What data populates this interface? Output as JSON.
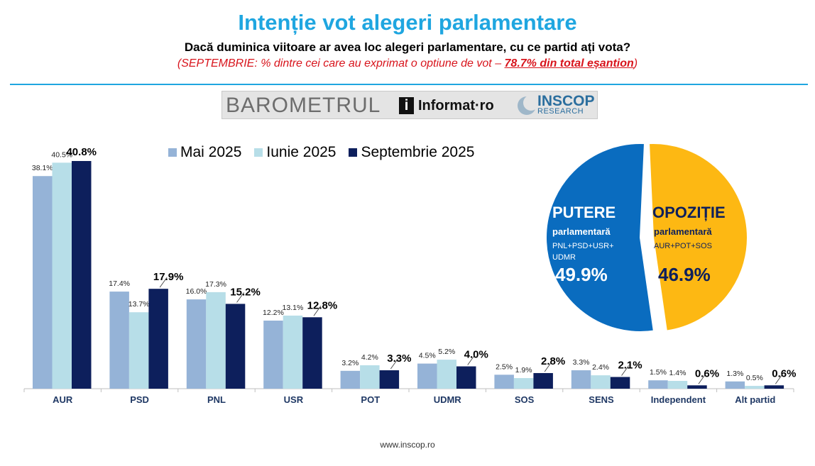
{
  "header": {
    "title": "Intenție vot alegeri parlamentare",
    "question": "Dacă duminica viitoare ar avea loc alegeri parlamentare, cu ce partid ați vota?",
    "note_pre": "(SEPTEMBRIE: % dintre cei care au exprimat o optiune de vot – ",
    "note_highlight": "78.7% din total eșantion",
    "note_post": ")"
  },
  "logo": {
    "barometer": "BAROMETRUL",
    "informat": "Informat·ro",
    "inscop": "INSCOP",
    "research": "RESEARCH"
  },
  "footer": {
    "url": "www.inscop.ro"
  },
  "colors": {
    "accent": "#1fa6e0",
    "note": "#d8141c",
    "putere": "#0a6cbf",
    "opozitie": "#fdb813"
  },
  "chart_data": [
    {
      "type": "bar",
      "categories": [
        "AUR",
        "PSD",
        "PNL",
        "USR",
        "POT",
        "UDMR",
        "SOS",
        "SENS",
        "Independent",
        "Alt partid"
      ],
      "series": [
        {
          "name": "Mai 2025",
          "color": "#95b3d7",
          "labels": [
            "38.1%",
            "17.4%",
            "16.0%",
            "12.2%",
            "3.2%",
            "4.5%",
            "2.5%",
            "3.3%",
            "1.5%",
            "1.3%"
          ],
          "values": [
            38.1,
            17.4,
            16.0,
            12.2,
            3.2,
            4.5,
            2.5,
            3.3,
            1.5,
            1.3
          ]
        },
        {
          "name": "Iunie 2025",
          "color": "#b7dee8",
          "labels": [
            "40.5%",
            "13.7%",
            "17.3%",
            "13.1%",
            "4.2%",
            "5.2%",
            "1.9%",
            "2.4%",
            "1.4%",
            "0.5%"
          ],
          "values": [
            40.5,
            13.7,
            17.3,
            13.1,
            4.2,
            5.2,
            1.9,
            2.4,
            1.4,
            0.5
          ]
        },
        {
          "name": "Septembrie 2025",
          "color": "#0d1f5c",
          "labels": [
            "40.8%",
            "17.9%",
            "15.2%",
            "12.8%",
            "3.3%",
            "4.0%",
            "2.8%",
            "2.1%",
            "0.6%",
            "0.6%"
          ],
          "values": [
            40.8,
            17.9,
            15.2,
            12.8,
            3.3,
            4.0,
            2.8,
            2.1,
            0.6,
            0.6
          ]
        }
      ],
      "ylim": [
        0,
        42
      ],
      "grid": false,
      "legend": "top"
    },
    {
      "type": "pie",
      "slices": [
        {
          "title": "PUTERE",
          "subtitle": "parlamentară",
          "parties": "PNL+PSD+USR+",
          "parties2": "UDMR",
          "label": "49.9%",
          "value": 49.9,
          "color": "#0a6cbf"
        },
        {
          "title": "OPOZIȚIE",
          "subtitle": "parlamentară",
          "parties": "AUR+POT+SOS",
          "label": "46.9%",
          "value": 46.9,
          "color": "#fdb813"
        }
      ]
    }
  ]
}
